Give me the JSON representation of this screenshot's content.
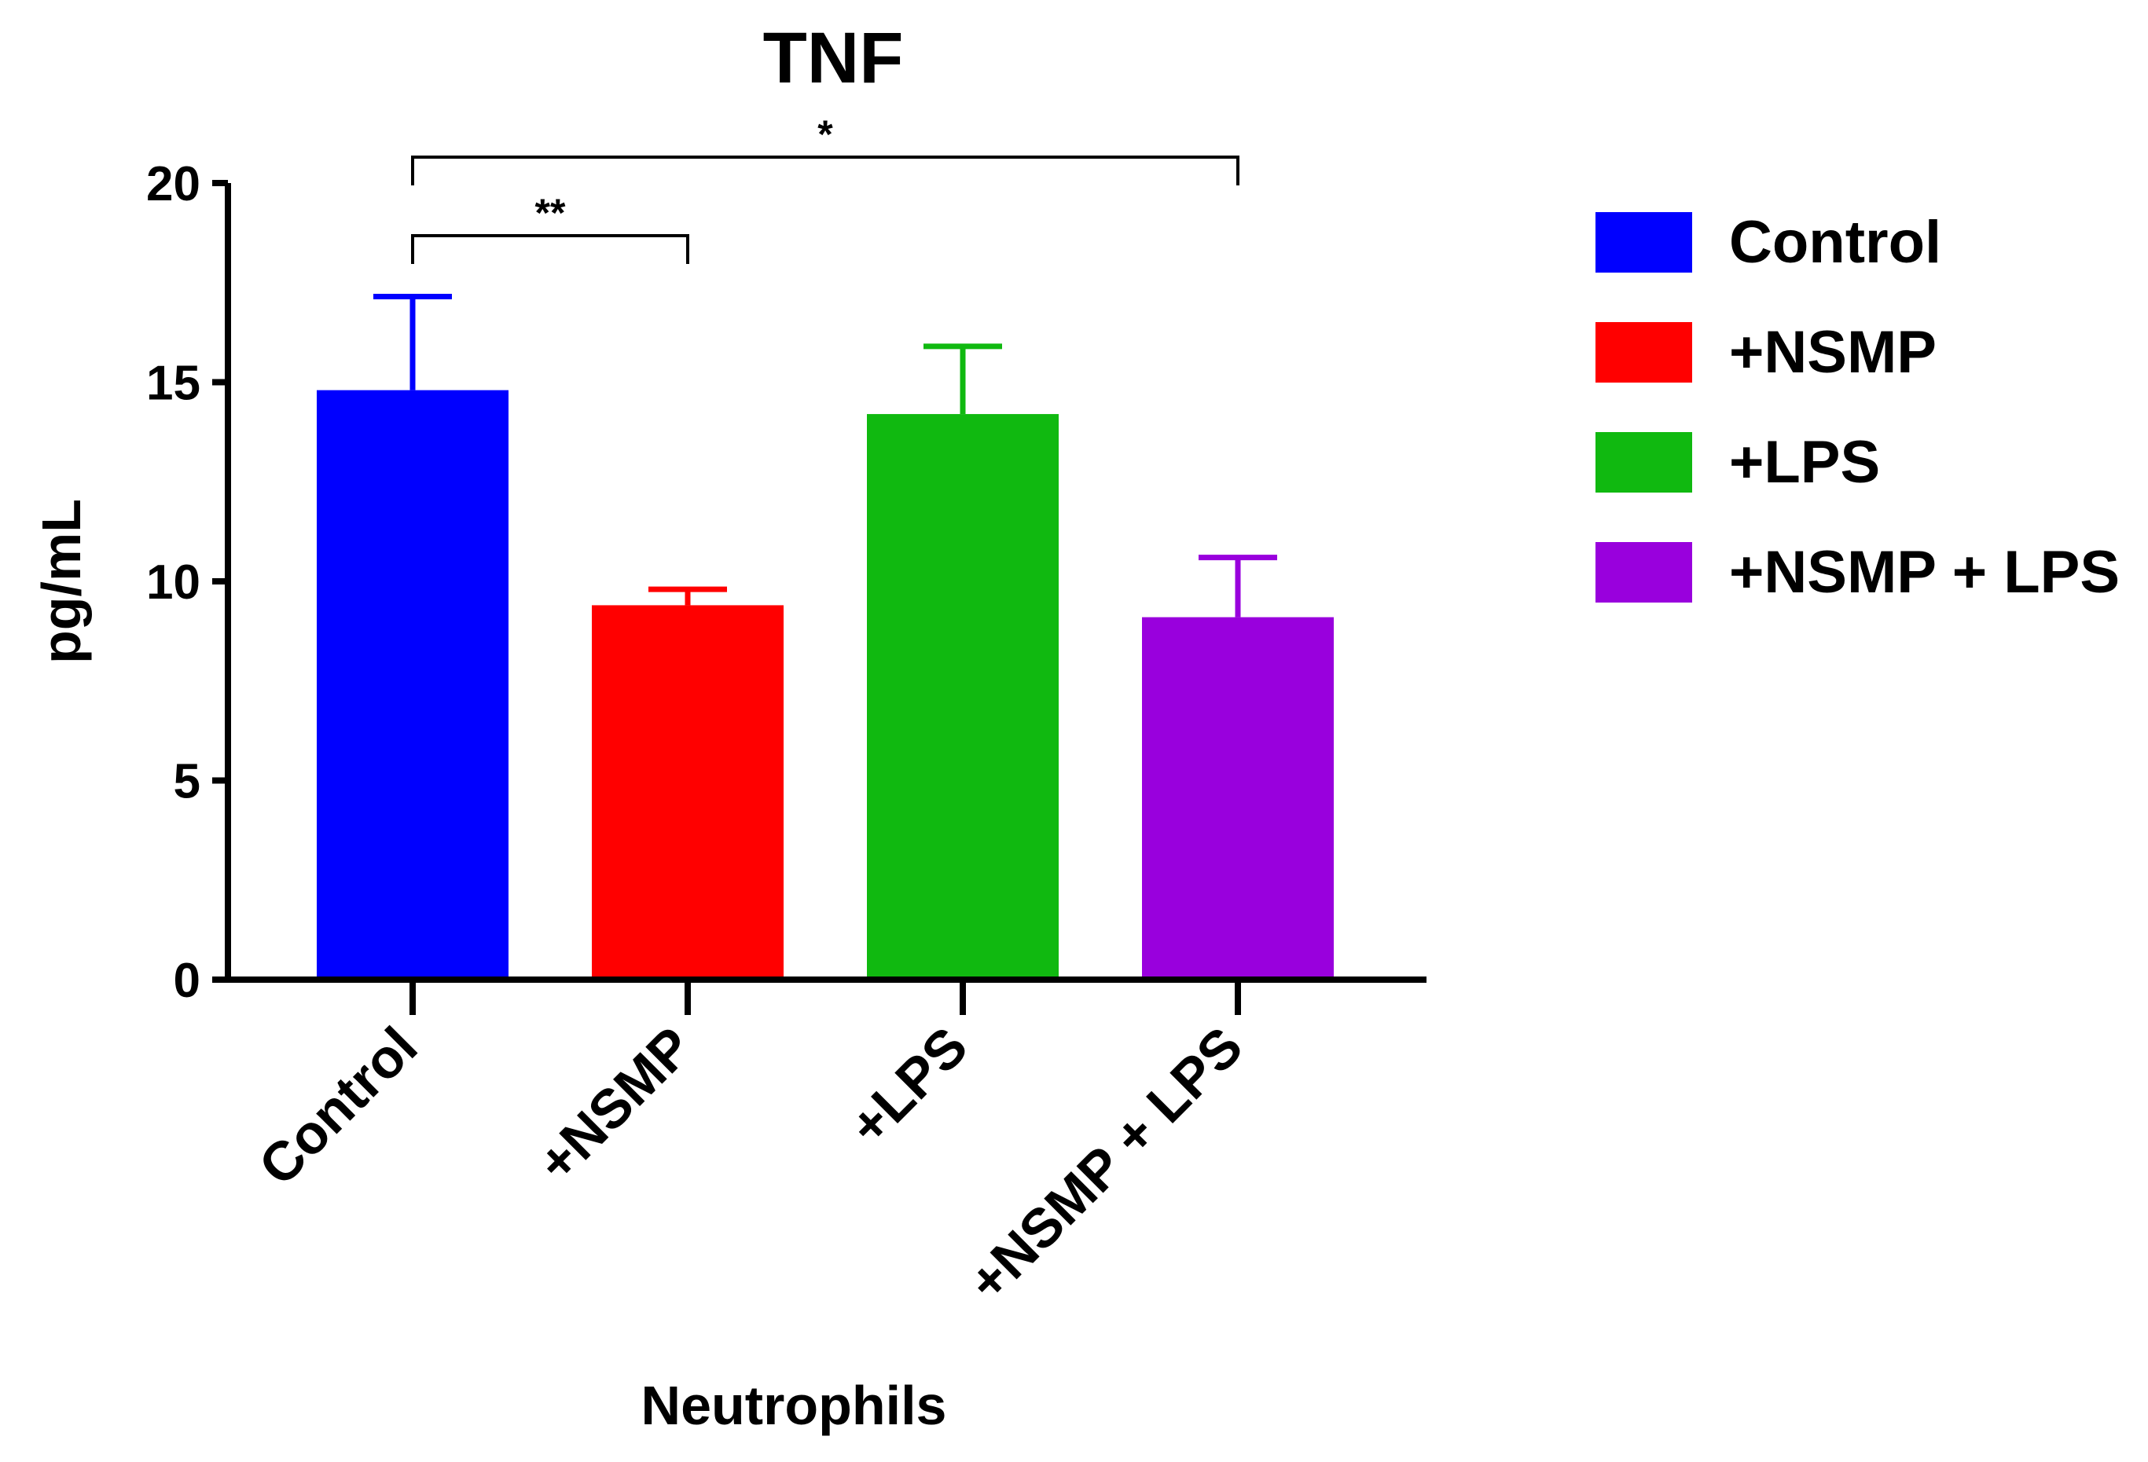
{
  "chart_data": {
    "type": "bar",
    "title": "TNF",
    "xlabel": "Neutrophils",
    "ylabel": "pg/mL",
    "ylim": [
      0,
      20
    ],
    "yticks": [
      0,
      5,
      10,
      15,
      20
    ],
    "grid": false,
    "legend_position": "right",
    "categories": [
      "Control",
      "+NSMP",
      "+LPS",
      "+NSMP + LPS"
    ],
    "values": [
      14.8,
      9.4,
      14.2,
      9.1
    ],
    "errors": [
      2.35,
      0.4,
      1.7,
      1.5
    ],
    "colors": [
      "#0000ff",
      "#ff0000",
      "#10b910",
      "#9900dd"
    ],
    "legend": [
      "Control",
      "+NSMP",
      "+LPS",
      "+NSMP + LPS"
    ],
    "significance": [
      {
        "from": 0,
        "to": 1,
        "label": "**"
      },
      {
        "from": 0,
        "to": 3,
        "label": "*"
      }
    ]
  }
}
